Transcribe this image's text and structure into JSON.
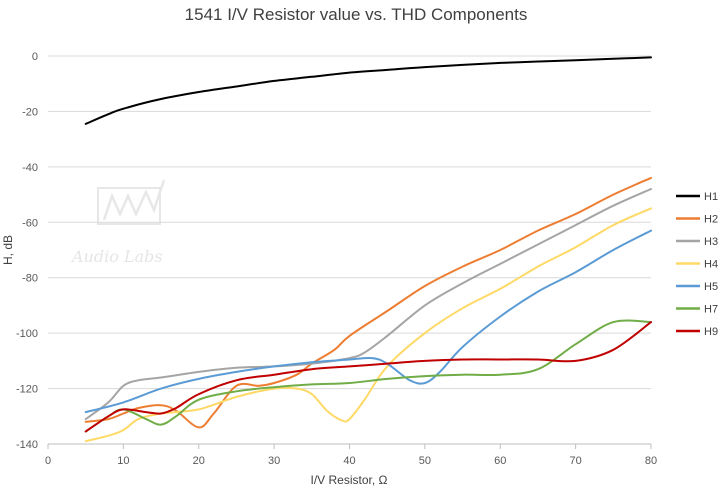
{
  "chart_data": {
    "type": "line",
    "title": "1541 I/V Resistor value vs. THD Components",
    "xlabel": "I/V Resistor, Ω",
    "ylabel": "H, dB",
    "xlim": [
      0,
      80
    ],
    "ylim": [
      -140,
      0
    ],
    "x_ticks": [
      "0",
      "10",
      "20",
      "30",
      "40",
      "50",
      "60",
      "70",
      "80"
    ],
    "y_ticks": [
      "0",
      "-20",
      "-40",
      "-60",
      "-80",
      "-100",
      "-120",
      "-140"
    ],
    "grid": "horizontal",
    "legend_position": "right",
    "series": [
      {
        "name": "H1",
        "color": "#000000",
        "points": [
          [
            5,
            -24.5
          ],
          [
            8,
            -21
          ],
          [
            10,
            -19
          ],
          [
            15,
            -15.5
          ],
          [
            20,
            -13
          ],
          [
            25,
            -11
          ],
          [
            30,
            -9
          ],
          [
            35,
            -7.5
          ],
          [
            40,
            -6
          ],
          [
            45,
            -5
          ],
          [
            50,
            -4
          ],
          [
            55,
            -3.2
          ],
          [
            60,
            -2.5
          ],
          [
            65,
            -2
          ],
          [
            70,
            -1.5
          ],
          [
            75,
            -1
          ],
          [
            80,
            -0.5
          ]
        ]
      },
      {
        "name": "H2",
        "color": "#ed7d31",
        "points": [
          [
            5,
            -132
          ],
          [
            8,
            -131
          ],
          [
            10,
            -129
          ],
          [
            12,
            -127
          ],
          [
            15,
            -126
          ],
          [
            17,
            -128
          ],
          [
            20,
            -134
          ],
          [
            22,
            -129
          ],
          [
            25,
            -119
          ],
          [
            28,
            -119
          ],
          [
            30,
            -118
          ],
          [
            33,
            -115
          ],
          [
            35,
            -111
          ],
          [
            38,
            -106
          ],
          [
            40,
            -101
          ],
          [
            45,
            -92
          ],
          [
            50,
            -83
          ],
          [
            55,
            -76
          ],
          [
            60,
            -70
          ],
          [
            65,
            -63
          ],
          [
            70,
            -57
          ],
          [
            75,
            -50
          ],
          [
            80,
            -44
          ]
        ]
      },
      {
        "name": "H3",
        "color": "#a5a5a5",
        "points": [
          [
            5,
            -131
          ],
          [
            8,
            -125
          ],
          [
            10,
            -119
          ],
          [
            12,
            -117
          ],
          [
            15,
            -116
          ],
          [
            20,
            -114
          ],
          [
            25,
            -112.5
          ],
          [
            30,
            -112
          ],
          [
            35,
            -111
          ],
          [
            40,
            -109
          ],
          [
            42,
            -107
          ],
          [
            45,
            -101
          ],
          [
            50,
            -90
          ],
          [
            55,
            -82
          ],
          [
            60,
            -75
          ],
          [
            65,
            -68
          ],
          [
            70,
            -61
          ],
          [
            75,
            -54
          ],
          [
            80,
            -48
          ]
        ]
      },
      {
        "name": "H4",
        "color": "#ffd966",
        "points": [
          [
            5,
            -139
          ],
          [
            8,
            -137
          ],
          [
            10,
            -135
          ],
          [
            12,
            -131
          ],
          [
            15,
            -129
          ],
          [
            20,
            -127.5
          ],
          [
            25,
            -123
          ],
          [
            30,
            -120
          ],
          [
            33,
            -120
          ],
          [
            35,
            -122
          ],
          [
            37,
            -128
          ],
          [
            39,
            -131.5
          ],
          [
            40,
            -131
          ],
          [
            42,
            -124
          ],
          [
            45,
            -112
          ],
          [
            50,
            -100
          ],
          [
            55,
            -91
          ],
          [
            60,
            -84
          ],
          [
            65,
            -76
          ],
          [
            70,
            -69
          ],
          [
            75,
            -61
          ],
          [
            80,
            -55
          ]
        ]
      },
      {
        "name": "H5",
        "color": "#5b9bd5",
        "points": [
          [
            5,
            -128.5
          ],
          [
            10,
            -125
          ],
          [
            15,
            -120
          ],
          [
            20,
            -116.5
          ],
          [
            25,
            -114
          ],
          [
            30,
            -112
          ],
          [
            35,
            -110.5
          ],
          [
            40,
            -109.5
          ],
          [
            43,
            -109
          ],
          [
            45,
            -111
          ],
          [
            48,
            -117
          ],
          [
            50,
            -118
          ],
          [
            52,
            -114
          ],
          [
            55,
            -105
          ],
          [
            60,
            -94
          ],
          [
            65,
            -85
          ],
          [
            70,
            -78
          ],
          [
            75,
            -70
          ],
          [
            80,
            -63
          ]
        ]
      },
      {
        "name": "H7",
        "color": "#70ad47",
        "points": [
          [
            5,
            -135.5
          ],
          [
            8,
            -130
          ],
          [
            10,
            -127.5
          ],
          [
            13,
            -131
          ],
          [
            15,
            -133
          ],
          [
            17,
            -130
          ],
          [
            20,
            -124
          ],
          [
            25,
            -121
          ],
          [
            30,
            -119.5
          ],
          [
            35,
            -118.5
          ],
          [
            40,
            -118
          ],
          [
            45,
            -116.5
          ],
          [
            50,
            -115.5
          ],
          [
            55,
            -115
          ],
          [
            60,
            -115
          ],
          [
            65,
            -113
          ],
          [
            70,
            -104
          ],
          [
            75,
            -96
          ],
          [
            80,
            -96
          ]
        ]
      },
      {
        "name": "H9",
        "color": "#c00000",
        "points": [
          [
            5,
            -135.5
          ],
          [
            8,
            -130
          ],
          [
            10,
            -127.5
          ],
          [
            13,
            -128.5
          ],
          [
            15,
            -129
          ],
          [
            17,
            -127
          ],
          [
            20,
            -122
          ],
          [
            25,
            -117
          ],
          [
            30,
            -115
          ],
          [
            35,
            -113
          ],
          [
            40,
            -112
          ],
          [
            45,
            -111
          ],
          [
            50,
            -110
          ],
          [
            55,
            -109.5
          ],
          [
            60,
            -109.5
          ],
          [
            65,
            -109.5
          ],
          [
            70,
            -110
          ],
          [
            75,
            -106
          ],
          [
            80,
            -96
          ]
        ]
      }
    ]
  },
  "watermark": {
    "icon": "audio-labs-logo",
    "text": "Audio Labs"
  }
}
